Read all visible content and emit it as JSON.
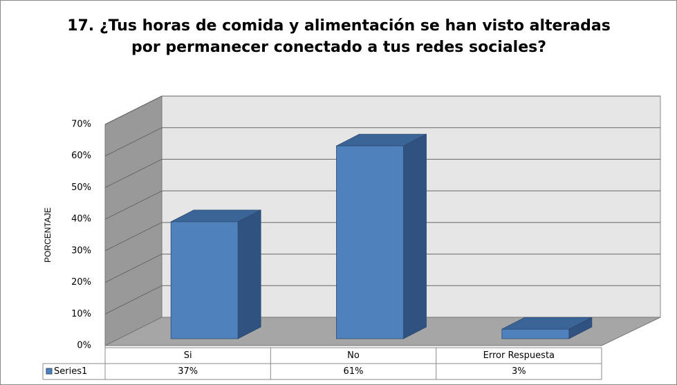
{
  "chart_data": {
    "type": "bar3d",
    "title": "17. ¿Tus horas de comida y alimentación se han visto alteradas por permanecer conectado a tus redes sociales?",
    "y_label": "PORCENTAJE",
    "categories": [
      "Si",
      "No",
      "Error Respuesta"
    ],
    "series": [
      {
        "name": "Series1",
        "color": "#4f81bd",
        "values": [
          37,
          61,
          3
        ],
        "value_labels": [
          "37%",
          "61%",
          "3%"
        ]
      }
    ],
    "ylim": [
      0,
      70
    ],
    "yticks": [
      {
        "value": 0,
        "label": "0%"
      },
      {
        "value": 10,
        "label": "10%"
      },
      {
        "value": 20,
        "label": "20%"
      },
      {
        "value": 30,
        "label": "30%"
      },
      {
        "value": 40,
        "label": "40%"
      },
      {
        "value": 50,
        "label": "50%"
      },
      {
        "value": 60,
        "label": "60%"
      },
      {
        "value": 70,
        "label": "70%"
      }
    ],
    "grid": true
  }
}
